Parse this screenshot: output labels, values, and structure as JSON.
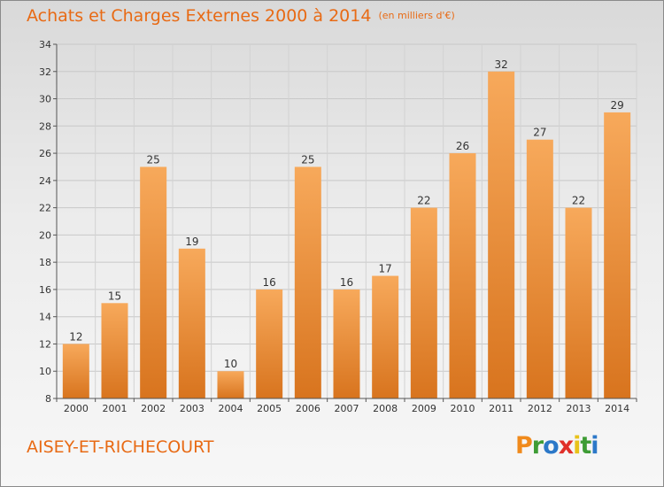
{
  "title": "Achats et Charges Externes 2000 à 2014",
  "unit": "(en milliers d'€)",
  "commune": "AISEY-ET-RICHECOURT",
  "logo": {
    "letters": [
      "P",
      "r",
      "o",
      "x",
      "i",
      "t",
      "i"
    ],
    "colors": [
      "#f08a1c",
      "#3e9c35",
      "#2c78c8",
      "#e0302a",
      "#e8c21a",
      "#3e9c35",
      "#2c78c8"
    ]
  },
  "colors": {
    "bar_top": "#f7a95b",
    "bar_bottom": "#d8741e",
    "title": "#e86a14"
  },
  "chart_data": {
    "type": "bar",
    "categories": [
      "2000",
      "2001",
      "2002",
      "2003",
      "2004",
      "2005",
      "2006",
      "2007",
      "2008",
      "2009",
      "2010",
      "2011",
      "2012",
      "2013",
      "2014"
    ],
    "values": [
      12,
      15,
      25,
      19,
      10,
      16,
      25,
      16,
      17,
      22,
      26,
      32,
      27,
      22,
      29
    ],
    "ylim": [
      8,
      34
    ],
    "yticks": [
      8,
      10,
      12,
      14,
      16,
      18,
      20,
      22,
      24,
      26,
      28,
      30,
      32,
      34
    ],
    "grid": true
  }
}
